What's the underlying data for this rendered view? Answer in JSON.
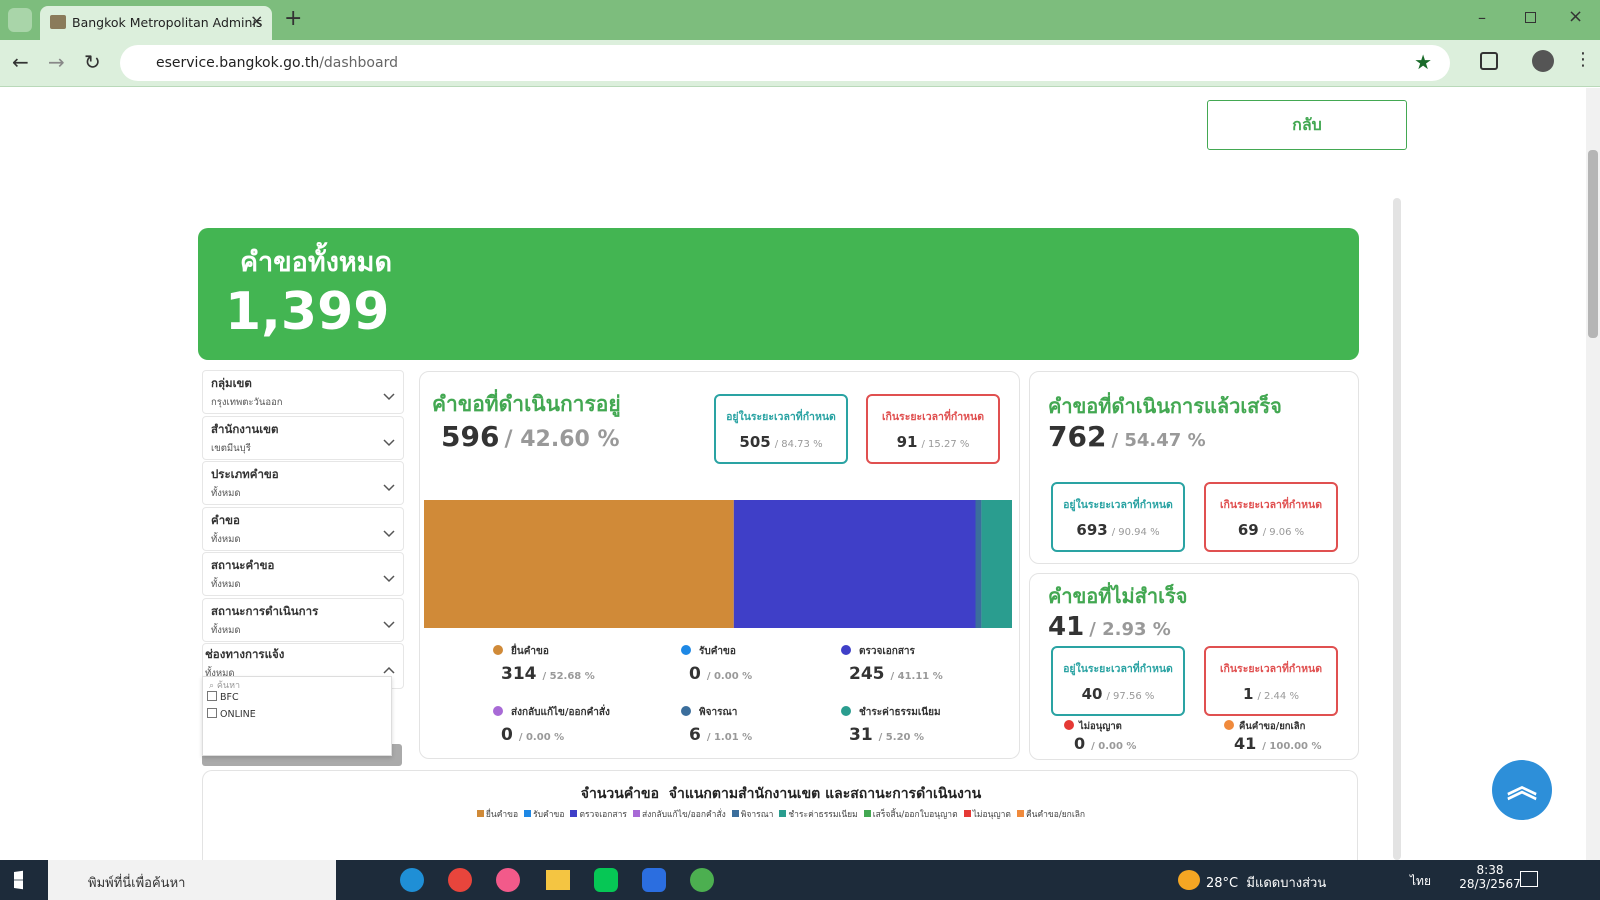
{
  "browser": {
    "tab_title": "Bangkok Metropolitan Adminis",
    "url_host": "eservice.bangkok.go.th",
    "url_path": "/dashboard"
  },
  "back_button": "กลับ",
  "total": {
    "label": "คำขอทั้งหมด",
    "value": "1,399"
  },
  "filters": [
    {
      "label": "กลุ่มเขต",
      "value": "กรุงเทพตะวันออก"
    },
    {
      "label": "สำนักงานเขต",
      "value": "เขตมีนบุรี"
    },
    {
      "label": "ประเภทคำขอ",
      "value": "ทั้งหมด"
    },
    {
      "label": "คำขอ",
      "value": "ทั้งหมด"
    },
    {
      "label": "สถานะคำขอ",
      "value": "ทั้งหมด"
    },
    {
      "label": "สถานะการดำเนินการ",
      "value": "ทั้งหมด"
    }
  ],
  "channel_filter": {
    "label": "ช่องทางการแจ้ง",
    "value": "ทั้งหมด",
    "search_placeholder": "ค้นหา",
    "options": [
      "BFC",
      "ONLINE"
    ]
  },
  "in_progress": {
    "title": "คำขอที่ดำเนินการอยู่",
    "count": 596,
    "percent": "/ 42.60 %",
    "within": {
      "label": "อยู่ในระยะเวลาที่กำหนด",
      "count": 505,
      "percent": "/ 84.73 %"
    },
    "overdue": {
      "label": "เกินระยะเวลาที่กำหนด",
      "count": 91,
      "percent": "/ 15.27 %"
    },
    "stages": [
      {
        "name": "ยื่นคำขอ",
        "value": 314,
        "percent": "/ 52.68 %",
        "color": "#d08a38"
      },
      {
        "name": "รับคำขอ",
        "value": 0,
        "percent": "/ 0.00 %",
        "color": "#1e88e5"
      },
      {
        "name": "ตรวจเอกสาร",
        "value": 245,
        "percent": "/ 41.11 %",
        "color": "#3f3fc8"
      },
      {
        "name": "ส่งกลับแก้ไข/ออกคำสั่ง",
        "value": 0,
        "percent": "/ 0.00 %",
        "color": "#a86ad6"
      },
      {
        "name": "พิจารณา",
        "value": 6,
        "percent": "/ 1.01 %",
        "color": "#3b6e9c"
      },
      {
        "name": "ชำระค่าธรรมเนียม",
        "value": 31,
        "percent": "/ 5.20 %",
        "color": "#2a9d8f"
      }
    ]
  },
  "completed": {
    "title": "คำขอที่ดำเนินการแล้วเสร็จ",
    "count": 762,
    "percent": "/ 54.47 %",
    "within": {
      "label": "อยู่ในระยะเวลาที่กำหนด",
      "count": 693,
      "percent": "/ 90.94 %"
    },
    "overdue": {
      "label": "เกินระยะเวลาที่กำหนด",
      "count": 69,
      "percent": "/ 9.06 %"
    }
  },
  "failed": {
    "title": "คำขอที่ไม่สำเร็จ",
    "count": 41,
    "percent": "/ 2.93 %",
    "within": {
      "label": "อยู่ในระยะเวลาที่กำหนด",
      "count": 40,
      "percent": "/ 97.56 %"
    },
    "overdue": {
      "label": "เกินระยะเวลาที่กำหนด",
      "count": 1,
      "percent": "/ 2.44 %"
    },
    "outcomes": [
      {
        "name": "ไม่อนุญาต",
        "value": 0,
        "percent": "/ 0.00 %",
        "color": "#e53935"
      },
      {
        "name": "คืนคำขอ/ยกเลิก",
        "value": 41,
        "percent": "/ 100.00 %",
        "color": "#f08a3c"
      }
    ]
  },
  "status_chart": {
    "title": "จำนวนคำขอ  จำแนกตามสำนักงานเขต และสถานะการดำเนินงาน",
    "legend": [
      {
        "name": "ยื่นคำขอ",
        "color": "#d08a38"
      },
      {
        "name": "รับคำขอ",
        "color": "#1e88e5"
      },
      {
        "name": "ตรวจเอกสาร",
        "color": "#3f3fc8"
      },
      {
        "name": "ส่งกลับแก้ไข/ออกคำสั่ง",
        "color": "#a86ad6"
      },
      {
        "name": "พิจารณา",
        "color": "#3b6e9c"
      },
      {
        "name": "ชำระค่าธรรมเนียม",
        "color": "#2a9d8f"
      },
      {
        "name": "เสร็จสิ้น/ออกใบอนุญาต",
        "color": "#43a852"
      },
      {
        "name": "ไม่อนุญาต",
        "color": "#e53935"
      },
      {
        "name": "คืนคำขอ/ยกเลิก",
        "color": "#f08a3c"
      }
    ]
  },
  "taskbar": {
    "search": "พิมพ์ที่นี่เพื่อค้นหา",
    "temperature": "28°C",
    "weather": "มีแดดบางส่วน",
    "language": "ไทย",
    "time": "8:38",
    "date": "28/3/2567"
  }
}
